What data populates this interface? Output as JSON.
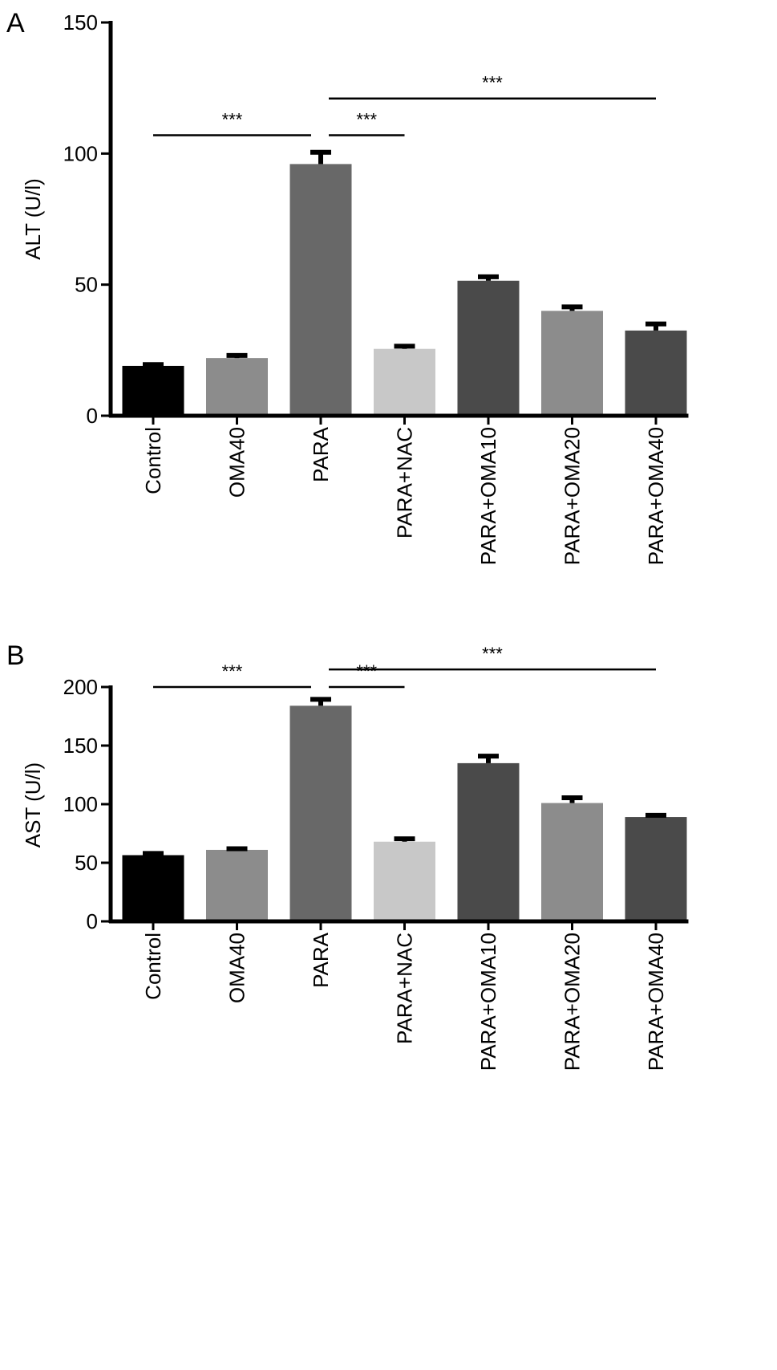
{
  "chart_data": [
    {
      "panel": "A",
      "type": "bar",
      "ylabel": "ALT (U/l)",
      "xlabel": "",
      "ylim": [
        0,
        150
      ],
      "yticks": [
        0,
        50,
        100,
        150
      ],
      "categories": [
        "Control",
        "OMA40",
        "PARA",
        "PARA+NAC",
        "PARA+OMA10",
        "PARA+OMA20",
        "PARA+OMA40"
      ],
      "values": [
        19,
        22,
        96,
        25.5,
        51.5,
        40,
        32.5
      ],
      "errors": [
        0.5,
        1,
        4.5,
        1,
        1.5,
        1.5,
        2.5
      ],
      "bar_colors": [
        "#000000",
        "#8c8c8c",
        "#686868",
        "#c8c8c8",
        "#4a4a4a",
        "#8c8c8c",
        "#4a4a4a"
      ],
      "significance": [
        {
          "from": 0,
          "to": 2,
          "label": "***",
          "y": 107
        },
        {
          "from": 2,
          "to": 3,
          "label": "***",
          "y": 107
        },
        {
          "from": 2,
          "to": 6,
          "label": "***",
          "y": 121
        }
      ]
    },
    {
      "panel": "B",
      "type": "bar",
      "ylabel": "AST (U/l)",
      "xlabel": "",
      "ylim": [
        0,
        200
      ],
      "yticks": [
        0,
        50,
        100,
        150,
        200
      ],
      "categories": [
        "Control",
        "OMA40",
        "PARA",
        "PARA+NAC",
        "PARA+OMA10",
        "PARA+OMA20",
        "PARA+OMA40"
      ],
      "values": [
        56.5,
        61,
        184,
        68,
        135,
        101,
        89
      ],
      "errors": [
        1.5,
        1,
        5.5,
        2.5,
        6,
        4.5,
        1.5
      ],
      "bar_colors": [
        "#000000",
        "#8c8c8c",
        "#686868",
        "#c8c8c8",
        "#4a4a4a",
        "#8c8c8c",
        "#4a4a4a"
      ],
      "significance": [
        {
          "from": 0,
          "to": 2,
          "label": "***",
          "y": 200
        },
        {
          "from": 2,
          "to": 3,
          "label": "***",
          "y": 200
        },
        {
          "from": 2,
          "to": 6,
          "label": "***",
          "y": 215
        }
      ]
    }
  ]
}
